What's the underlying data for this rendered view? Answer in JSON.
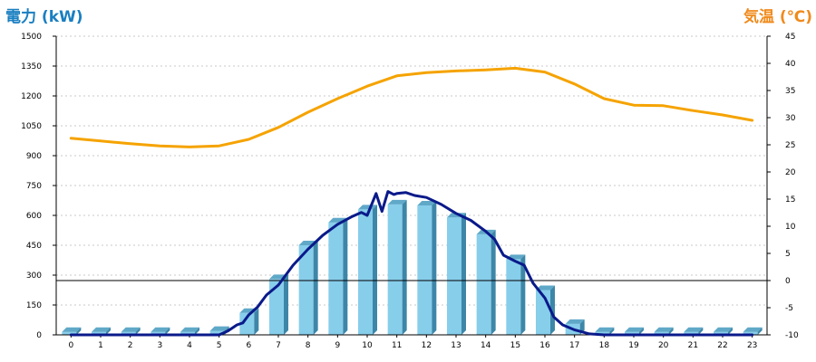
{
  "chart_data": {
    "type": "bar",
    "ylabel_left": "電力 (kW)",
    "ylabel_right": "気温 (℃)",
    "categories": [
      "0",
      "1",
      "2",
      "3",
      "4",
      "5",
      "6",
      "7",
      "8",
      "9",
      "10",
      "11",
      "12",
      "13",
      "14",
      "15",
      "16",
      "17",
      "18",
      "19",
      "20",
      "21",
      "22",
      "23"
    ],
    "y_left_ticks": [
      "0",
      "150",
      "300",
      "450",
      "600",
      "750",
      "900",
      "1050",
      "1200",
      "1350",
      "1500"
    ],
    "y_right_ticks": [
      "-10",
      "-5",
      "0",
      "5",
      "10",
      "15",
      "20",
      "25",
      "30",
      "35",
      "40",
      "45"
    ],
    "ylim_left": [
      0,
      1500
    ],
    "ylim_right": [
      -10,
      45
    ],
    "grid": true,
    "series": [
      {
        "kind": "bar",
        "axis": "left",
        "color": "#87ceeb",
        "values": [
          15,
          15,
          15,
          15,
          15,
          20,
          110,
          280,
          450,
          565,
          630,
          655,
          650,
          590,
          505,
          380,
          225,
          55,
          15,
          15,
          15,
          15,
          15,
          15
        ]
      },
      {
        "kind": "line",
        "axis": "left",
        "color": "#0a1a8a",
        "points": [
          [
            0,
            0
          ],
          [
            1,
            0
          ],
          [
            2,
            0
          ],
          [
            3,
            0
          ],
          [
            4,
            0
          ],
          [
            5,
            0
          ],
          [
            5.3,
            20
          ],
          [
            5.6,
            50
          ],
          [
            5.8,
            60
          ],
          [
            6,
            100
          ],
          [
            6.3,
            140
          ],
          [
            6.6,
            200
          ],
          [
            7,
            250
          ],
          [
            7.5,
            350
          ],
          [
            8,
            430
          ],
          [
            8.5,
            500
          ],
          [
            9,
            555
          ],
          [
            9.5,
            595
          ],
          [
            9.8,
            615
          ],
          [
            10,
            600
          ],
          [
            10.3,
            710
          ],
          [
            10.5,
            620
          ],
          [
            10.7,
            720
          ],
          [
            10.9,
            705
          ],
          [
            11,
            710
          ],
          [
            11.3,
            715
          ],
          [
            11.6,
            700
          ],
          [
            12,
            690
          ],
          [
            12.5,
            655
          ],
          [
            13,
            610
          ],
          [
            13.5,
            575
          ],
          [
            14,
            520
          ],
          [
            14.3,
            480
          ],
          [
            14.6,
            400
          ],
          [
            15,
            370
          ],
          [
            15.3,
            350
          ],
          [
            15.6,
            260
          ],
          [
            16,
            185
          ],
          [
            16.3,
            90
          ],
          [
            16.6,
            50
          ],
          [
            17,
            25
          ],
          [
            17.5,
            5
          ],
          [
            18,
            0
          ],
          [
            19,
            0
          ],
          [
            20,
            0
          ],
          [
            21,
            0
          ],
          [
            22,
            0
          ],
          [
            23,
            0
          ]
        ]
      },
      {
        "kind": "line",
        "axis": "right",
        "color": "#f5a300",
        "points": [
          [
            0,
            26.2
          ],
          [
            1,
            25.7
          ],
          [
            2,
            25.2
          ],
          [
            3,
            24.8
          ],
          [
            4,
            24.6
          ],
          [
            5,
            24.8
          ],
          [
            6,
            26
          ],
          [
            7,
            28.2
          ],
          [
            8,
            31
          ],
          [
            9,
            33.5
          ],
          [
            10,
            35.8
          ],
          [
            11,
            37.7
          ],
          [
            12,
            38.3
          ],
          [
            13,
            38.6
          ],
          [
            14,
            38.8
          ],
          [
            15,
            39.1
          ],
          [
            16,
            38.4
          ],
          [
            17,
            36.2
          ],
          [
            18,
            33.5
          ],
          [
            19,
            32.3
          ],
          [
            20,
            32.2
          ],
          [
            21,
            31.3
          ],
          [
            22,
            30.5
          ],
          [
            23,
            29.5
          ]
        ]
      }
    ]
  }
}
